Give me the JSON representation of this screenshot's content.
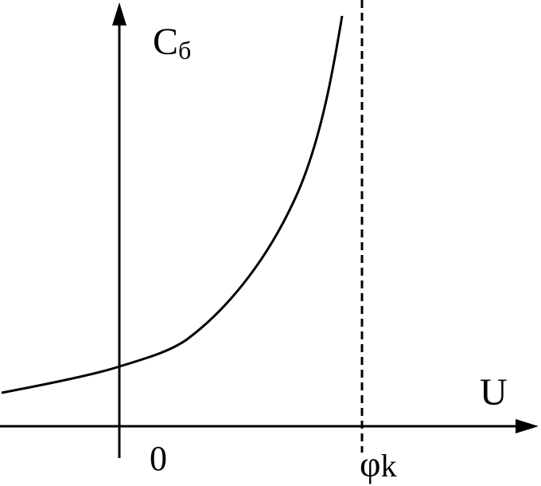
{
  "axes": {
    "y_label": {
      "main": "C",
      "sub": "б"
    },
    "x_label": "U",
    "origin_label": "0",
    "marker_label": {
      "main": "φ",
      "sub": "k"
    }
  }
}
